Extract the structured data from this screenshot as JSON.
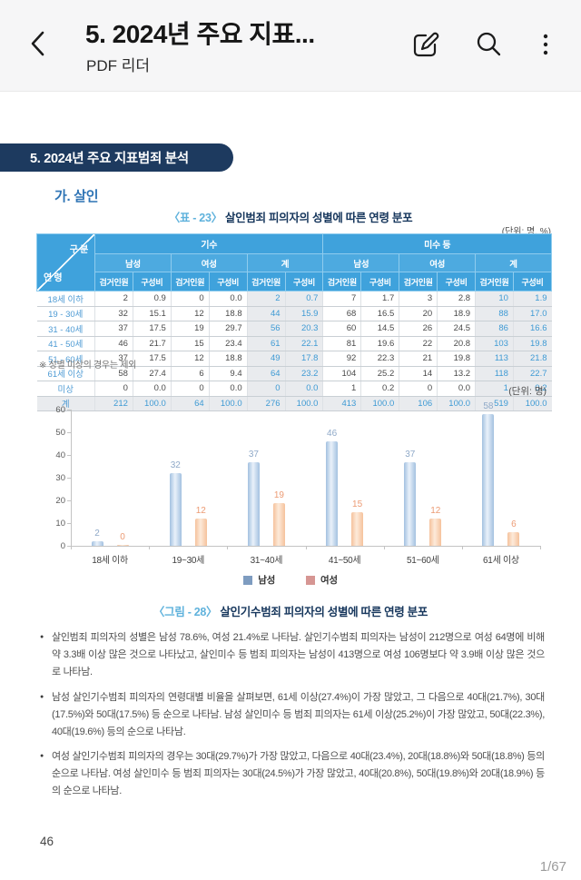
{
  "colors": {
    "banner_navy": "#1d3a5f",
    "section_blue": "#2e74b5",
    "caption_tag_blue": "#5fb2dc",
    "caption_dark": "#16365c",
    "table_header_blue": "#3fa2dc",
    "table_subheader_blue": "#4daae0",
    "row_label_blue": "#4e9bd4",
    "total_bg": "#e9ebee",
    "total_text": "#3e9ad4"
  },
  "app_bar": {
    "back_icon": "chevron-left",
    "title": "5. 2024년 주요 지표...",
    "subtitle": "PDF 리더",
    "edit_icon": "pen-square",
    "search_icon": "magnifier",
    "menu_icon": "kebab-vertical"
  },
  "page": {
    "banner": "5. 2024년 주요 지표범죄 분석",
    "section": "가. 살인",
    "table": {
      "caption_tag": "〈표 - 23〉",
      "caption": " 살인범죄 피의자의 성별에 따른 연령 분포",
      "unit": "(단위: 명, %)",
      "corner_top": "구 분",
      "corner_bottom": "연 령",
      "groups": [
        "기수",
        "미수 등"
      ],
      "subgroups": [
        "남성",
        "여성",
        "계"
      ],
      "measures": [
        "검거인원",
        "구성비"
      ],
      "rows": [
        {
          "label": "18세 이하",
          "values": [
            "2",
            "0.9",
            "0",
            "0.0",
            "2",
            "0.7",
            "7",
            "1.7",
            "3",
            "2.8",
            "10",
            "1.9"
          ],
          "is_total": false
        },
        {
          "label": "19 - 30세",
          "values": [
            "32",
            "15.1",
            "12",
            "18.8",
            "44",
            "15.9",
            "68",
            "16.5",
            "20",
            "18.9",
            "88",
            "17.0"
          ],
          "is_total": false
        },
        {
          "label": "31 - 40세",
          "values": [
            "37",
            "17.5",
            "19",
            "29.7",
            "56",
            "20.3",
            "60",
            "14.5",
            "26",
            "24.5",
            "86",
            "16.6"
          ],
          "is_total": false
        },
        {
          "label": "41 - 50세",
          "values": [
            "46",
            "21.7",
            "15",
            "23.4",
            "61",
            "22.1",
            "81",
            "19.6",
            "22",
            "20.8",
            "103",
            "19.8"
          ],
          "is_total": false
        },
        {
          "label": "51 - 60세",
          "values": [
            "37",
            "17.5",
            "12",
            "18.8",
            "49",
            "17.8",
            "92",
            "22.3",
            "21",
            "19.8",
            "113",
            "21.8"
          ],
          "is_total": false
        },
        {
          "label": "61세 이상",
          "values": [
            "58",
            "27.4",
            "6",
            "9.4",
            "64",
            "23.2",
            "104",
            "25.2",
            "14",
            "13.2",
            "118",
            "22.7"
          ],
          "is_total": false
        },
        {
          "label": "미상",
          "values": [
            "0",
            "0.0",
            "0",
            "0.0",
            "0",
            "0.0",
            "1",
            "0.2",
            "0",
            "0.0",
            "1",
            "0.2"
          ],
          "is_total": false
        },
        {
          "label": "계",
          "values": [
            "212",
            "100.0",
            "64",
            "100.0",
            "276",
            "100.0",
            "413",
            "100.0",
            "106",
            "100.0",
            "519",
            "100.0"
          ],
          "is_total": true
        }
      ],
      "footnote": "※ 성별 미상의 경우는 제외"
    },
    "bullets": [
      "살인범죄 피의자의 성별은 남성 78.6%, 여성 21.4%로 나타남. 살인기수범죄 피의자는 남성이 212명으로 여성 64명에 비해 약 3.3배 이상 많은 것으로 나타났고, 살인미수 등 범죄 피의자는 남성이 413명으로 여성 106명보다 약 3.9배 이상 많은 것으로 나타남.",
      "남성 살인기수범죄 피의자의 연령대별 비율을 살펴보면, 61세 이상(27.4%)이 가장 많았고, 그 다음으로 40대(21.7%), 30대(17.5%)와 50대(17.5%) 등 순으로 나타남. 남성 살인미수 등 범죄 피의자는 61세 이상(25.2%)이 가장 많았고, 50대(22.3%), 40대(19.6%) 등의 순으로 나타남.",
      "여성 살인기수범죄 피의자의 경우는 30대(29.7%)가 가장 많았고, 다음으로 40대(23.4%), 20대(18.8%)와 50대(18.8%) 등의 순으로 나타남. 여성 살인미수 등 범죄 피의자는 30대(24.5%)가 가장 많았고, 40대(20.8%), 50대(19.8%)와 20대(18.9%) 등의 순으로 나타남."
    ],
    "page_number": "46"
  },
  "chart_data": {
    "type": "bar",
    "unit_label": "(단위: 명)",
    "caption_tag": "〈그림 - 28〉",
    "caption": " 살인기수범죄 피의자의 성별에 따른 연령 분포",
    "categories": [
      "18세 이하",
      "19~30세",
      "31~40세",
      "41~50세",
      "51~60세",
      "61세 이상"
    ],
    "series": [
      {
        "name": "남성",
        "values": [
          2,
          32,
          37,
          46,
          37,
          58
        ],
        "color": "#a3c1e0",
        "color_light": "#e9f1fa",
        "label_color": "#8fa9c8",
        "legend_color": "#7e9cc0"
      },
      {
        "name": "여성",
        "values": [
          0,
          12,
          19,
          15,
          12,
          6
        ],
        "color": "#f5c29c",
        "color_light": "#fdeada",
        "label_color": "#ec9b74",
        "legend_color": "#d69693"
      }
    ],
    "ylim": [
      0,
      60
    ],
    "yticks": [
      0,
      10,
      20,
      30,
      40,
      50,
      60
    ],
    "grid": false,
    "legend_position": "bottom"
  },
  "reader": {
    "page_indicator": "1/67"
  }
}
